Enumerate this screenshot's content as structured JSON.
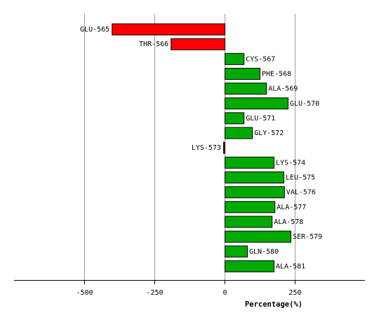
{
  "chart_data": {
    "type": "bar",
    "orientation": "horizontal",
    "categories": [
      "GLU-565",
      "THR-566",
      "CYS-567",
      "PHE-568",
      "ALA-569",
      "GLU-570",
      "GLU-571",
      "GLY-572",
      "LYS-573",
      "LYS-574",
      "LEU-575",
      "VAL-576",
      "ALA-577",
      "ALA-578",
      "SER-579",
      "GLN-580",
      "ALA-581"
    ],
    "values": [
      -402,
      -192,
      68,
      125,
      148,
      225,
      68,
      98,
      -5,
      175,
      210,
      212,
      178,
      168,
      235,
      80,
      175
    ],
    "xlabel": "Percentage(%)",
    "xlim": [
      -750,
      500
    ],
    "xticks": [
      -500,
      -250,
      0,
      250
    ],
    "grid": true,
    "colors": {
      "positive": "#00aa00",
      "negative": "#ff0000",
      "small_negative": "#8b1a1a"
    }
  }
}
